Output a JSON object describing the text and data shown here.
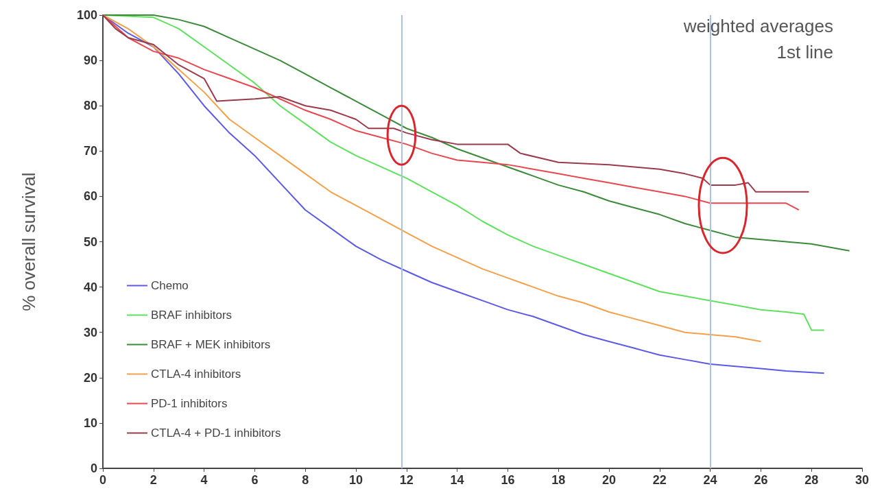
{
  "chart_data": {
    "type": "line",
    "ylabel": "% overall survival",
    "xlim": [
      0,
      30
    ],
    "ylim": [
      0,
      100
    ],
    "xticks": [
      0,
      2,
      4,
      6,
      8,
      10,
      12,
      14,
      16,
      18,
      20,
      22,
      24,
      26,
      28,
      30
    ],
    "yticks": [
      0,
      10,
      20,
      30,
      40,
      50,
      60,
      70,
      80,
      90,
      100
    ],
    "grid": false,
    "legend": "bottom left",
    "marker": "none",
    "line_style": "solid",
    "annotations": [
      "weighted averages",
      "1st line"
    ],
    "ref_lines": [
      {
        "axis": "x",
        "value": 11.8,
        "label": null,
        "color": "#a9c1e4"
      },
      {
        "axis": "x",
        "value": 24,
        "label": null,
        "color": "#a9c1e4"
      }
    ],
    "series": [
      {
        "name": "Chemo",
        "color": "#5a5ae6",
        "x": [
          0,
          1,
          2,
          3,
          4,
          5,
          6,
          7,
          8,
          9,
          10,
          11,
          12,
          13,
          14,
          15,
          16,
          17,
          18,
          19,
          20,
          21,
          22,
          23,
          24,
          25,
          26,
          27,
          28.5
        ],
        "values": [
          100,
          96,
          93,
          87,
          80,
          74,
          69,
          63,
          57,
          53,
          49,
          46,
          43.5,
          41,
          39,
          37,
          35,
          33.5,
          31.5,
          29.5,
          28,
          26.5,
          25,
          24,
          23,
          22.5,
          22,
          21.5,
          21
        ]
      },
      {
        "name": "BRAF inhibitors",
        "color": "#5ee05e",
        "x": [
          0,
          2,
          3,
          4,
          5,
          6,
          7,
          8,
          9,
          10,
          11,
          12,
          13,
          14,
          15,
          16,
          17,
          18,
          19,
          20,
          21,
          22,
          23,
          24,
          25,
          26,
          27,
          27.7,
          28,
          28.5
        ],
        "values": [
          100,
          99.5,
          97,
          93,
          89,
          85,
          80,
          76,
          72,
          69,
          66.5,
          64,
          61,
          58,
          54.5,
          51.5,
          49,
          47,
          45,
          43,
          41,
          39,
          38,
          37,
          36,
          35,
          34.5,
          34,
          30.5,
          30.5
        ]
      },
      {
        "name": "BRAF + MEK inhibitors",
        "color": "#3a8a3a",
        "x": [
          0,
          2,
          3,
          4,
          5,
          6,
          7,
          8,
          9,
          10,
          11,
          12,
          13,
          14,
          15,
          16,
          17,
          18,
          19,
          20,
          21,
          22,
          23,
          24,
          25,
          26,
          27,
          28,
          29.5
        ],
        "values": [
          100,
          100,
          99,
          97.5,
          95,
          92.5,
          90,
          87,
          84,
          81,
          78,
          75,
          73,
          70.5,
          68.5,
          66.5,
          64.5,
          62.5,
          61,
          59,
          57.5,
          56,
          54,
          52.5,
          51,
          50.5,
          50,
          49.5,
          48
        ]
      },
      {
        "name": "CTLA-4 inhibitors",
        "color": "#f2a04a",
        "x": [
          0,
          1,
          2,
          3,
          4,
          5,
          6,
          7,
          8,
          9,
          10,
          11,
          12,
          13,
          14,
          15,
          16,
          17,
          18,
          19,
          20,
          21,
          22,
          23,
          24,
          25,
          26
        ],
        "values": [
          100,
          97,
          93,
          88,
          83,
          77,
          73,
          69,
          65,
          61,
          58,
          55,
          52,
          49,
          46.5,
          44,
          42,
          40,
          38,
          36.5,
          34.5,
          33,
          31.5,
          30,
          29.5,
          29,
          28
        ]
      },
      {
        "name": "PD-1 inhibitors",
        "color": "#e8474f",
        "x": [
          0,
          1,
          2,
          3,
          4,
          5,
          6,
          7,
          8,
          9,
          10,
          11,
          12,
          13,
          14,
          15,
          16,
          17,
          18,
          19,
          20,
          21,
          22,
          23,
          24,
          25,
          26,
          27,
          27.5
        ],
        "values": [
          100,
          95,
          92,
          90.5,
          88,
          86,
          84,
          81.5,
          79,
          77,
          74.5,
          73,
          71.5,
          69.5,
          68,
          67.5,
          67,
          66,
          65,
          64,
          63,
          62,
          61,
          60,
          58.5,
          58.5,
          58.5,
          58.5,
          57
        ]
      },
      {
        "name": "CTLA-4 + PD-1 inhibitors",
        "color": "#9a3a4a",
        "x": [
          0,
          0.5,
          1,
          2,
          3,
          4,
          4.5,
          6,
          7,
          8,
          9,
          10,
          10.5,
          11.5,
          12,
          13,
          13.5,
          14,
          16,
          16.5,
          18,
          20,
          22,
          23,
          23.7,
          24,
          25,
          25.5,
          25.8,
          27,
          27.9
        ],
        "values": [
          100,
          97,
          95,
          93.5,
          89,
          86,
          81,
          81.5,
          82,
          80,
          79,
          77,
          75,
          75,
          74,
          72.5,
          72,
          71.5,
          71.5,
          69.5,
          67.5,
          67,
          66,
          65,
          64,
          62.5,
          62.5,
          63,
          61,
          61,
          61
        ]
      }
    ]
  }
}
